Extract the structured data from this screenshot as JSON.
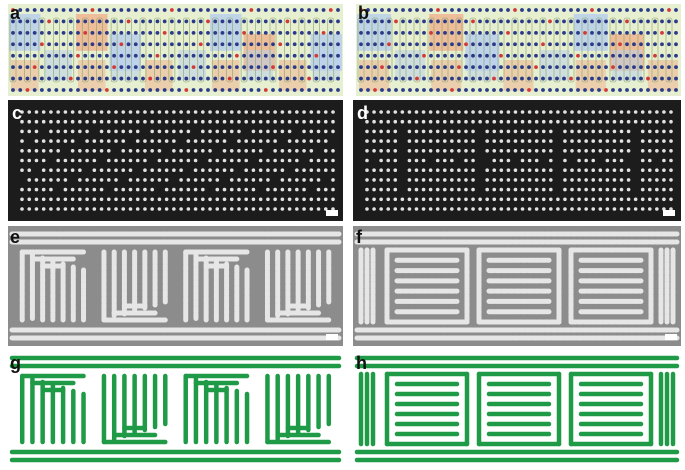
{
  "panels": [
    {
      "key": "a",
      "label": "a",
      "kind": "schematic",
      "pattern": "meander"
    },
    {
      "key": "b",
      "label": "b",
      "kind": "schematic",
      "pattern": "nested-squares"
    },
    {
      "key": "c",
      "label": "c",
      "kind": "dot-array",
      "pattern": "meander",
      "scale_bar": true
    },
    {
      "key": "d",
      "label": "d",
      "kind": "dot-array",
      "pattern": "nested-squares",
      "scale_bar": true
    },
    {
      "key": "e",
      "label": "e",
      "kind": "micrograph",
      "pattern": "meander",
      "scale_bar": true
    },
    {
      "key": "f",
      "label": "f",
      "kind": "micrograph",
      "pattern": "nested-squares",
      "scale_bar": true
    },
    {
      "key": "g",
      "label": "g",
      "kind": "rendering",
      "pattern": "meander"
    },
    {
      "key": "h",
      "label": "h",
      "kind": "rendering",
      "pattern": "nested-squares"
    }
  ],
  "colors": {
    "schematic_green": "#e6efcf",
    "schematic_blue": "#b9cfec",
    "schematic_orange": "#efb48f",
    "dot_dark": "#2b3a88",
    "dot_red": "#d23a3a",
    "dark_bg": "#1c1c1c",
    "dot_white": "#e2e2e2",
    "sem_bg": "#8c8c8c",
    "sem_line": "#e6e6e6",
    "green_line": "#1f9a46"
  }
}
